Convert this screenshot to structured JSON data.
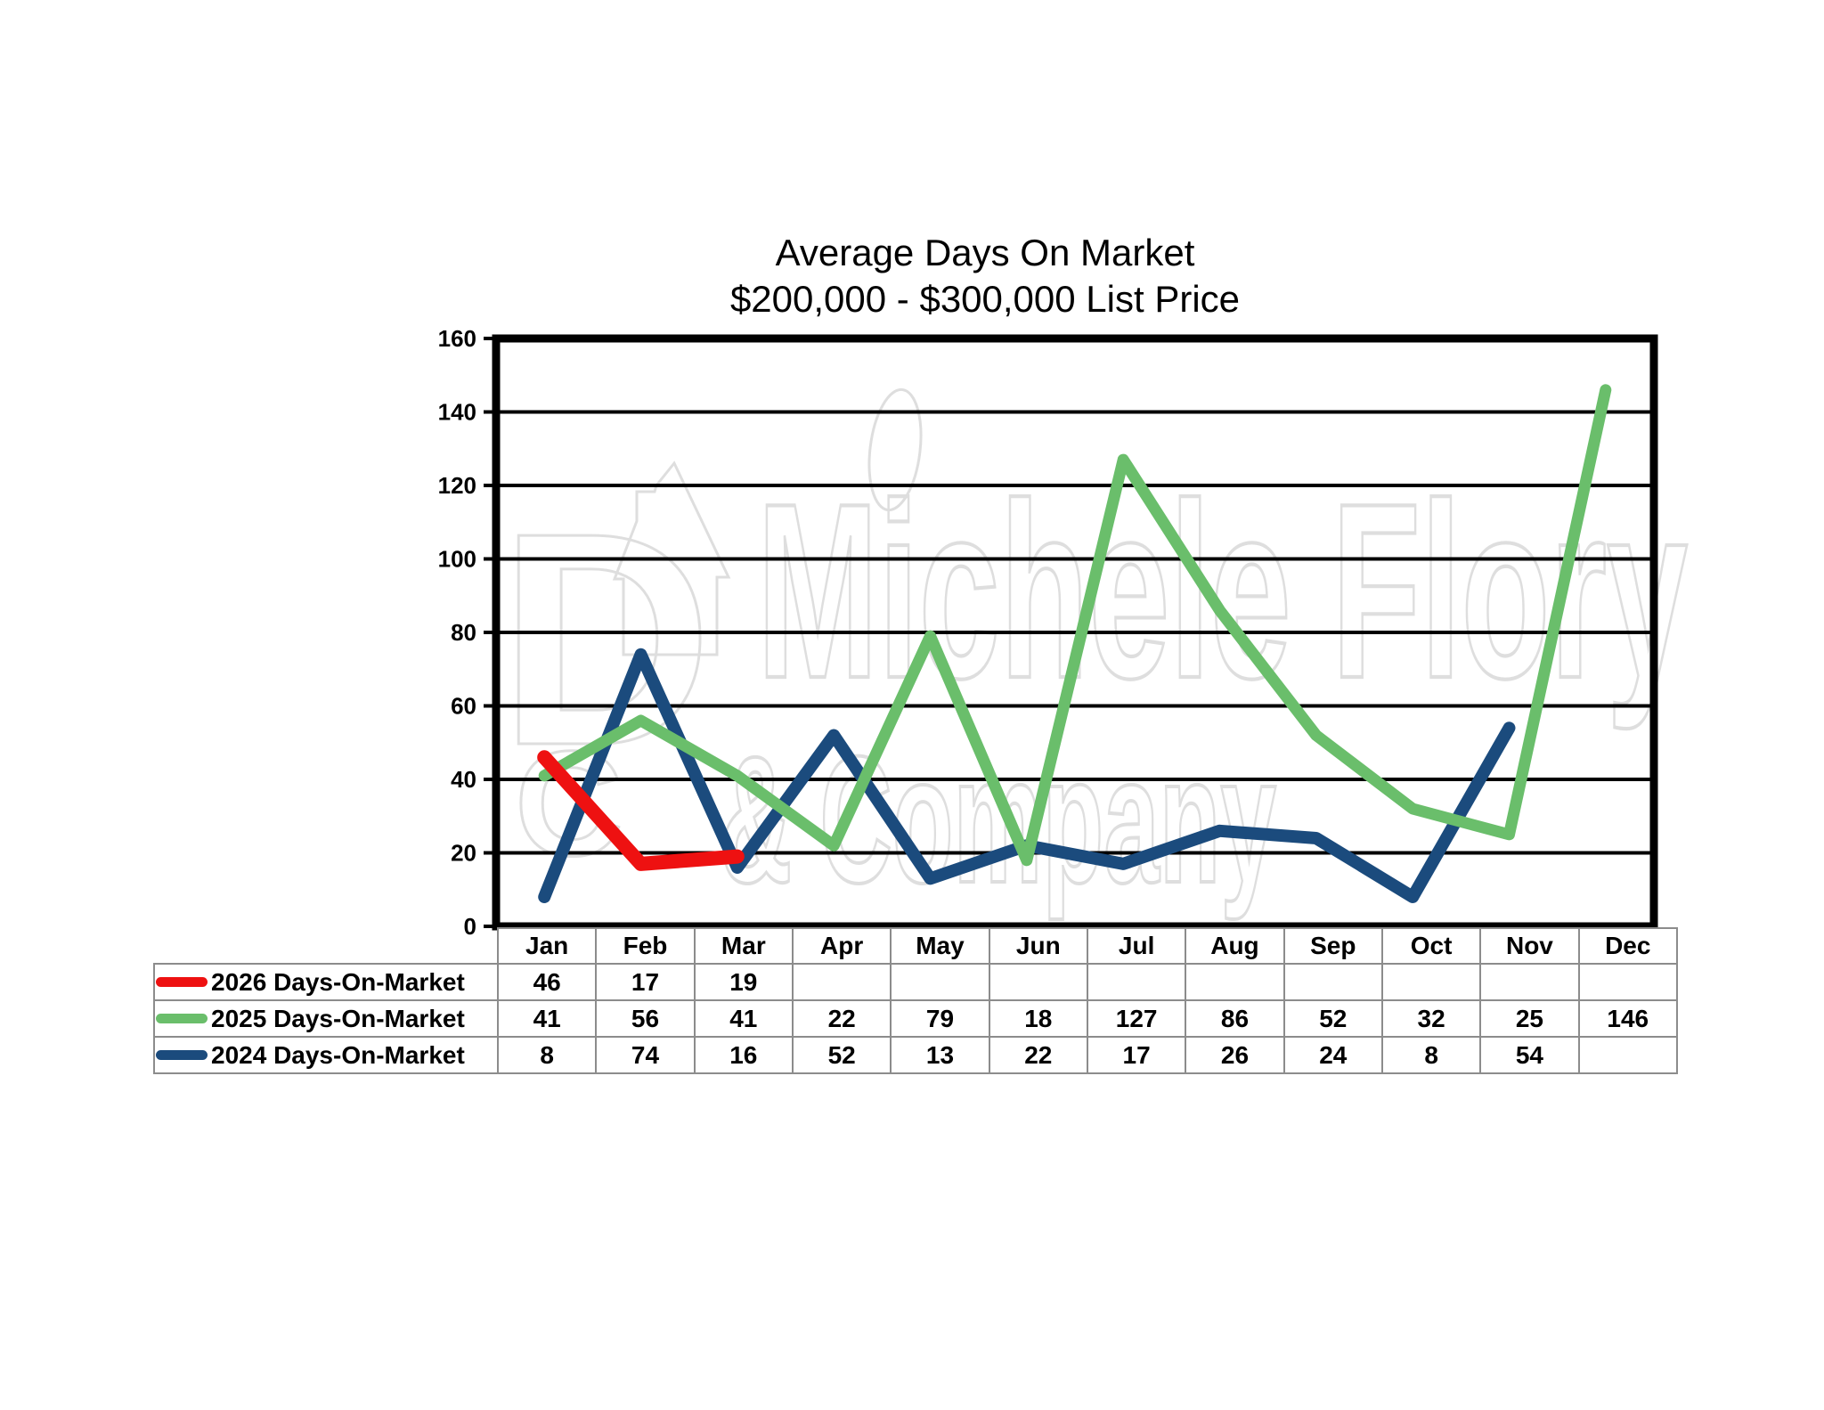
{
  "chart": {
    "title": "Average Days On Market",
    "subtitle": "$200,000 - $300,000 List Price"
  },
  "watermark": {
    "line1": "Michele Flory",
    "line2": "& Company",
    "icons": [
      "letter-d-monogram",
      "house-icon",
      "letter-c-monogram",
      "leaf-icon"
    ],
    "color": "#dedede"
  },
  "chart_data": {
    "type": "line",
    "title": "Average Days On Market",
    "subtitle": "$200,000 - $300,000 List Price",
    "categories": [
      "Jan",
      "Feb",
      "Mar",
      "Apr",
      "May",
      "Jun",
      "Jul",
      "Aug",
      "Sep",
      "Oct",
      "Nov",
      "Dec"
    ],
    "ylim": [
      0,
      160
    ],
    "y_ticks": [
      0,
      20,
      40,
      60,
      80,
      100,
      120,
      140,
      160
    ],
    "grid": "horizontal",
    "grid_color": "#000000",
    "frame_color": "#000000",
    "legend_position": "table-left",
    "series": [
      {
        "name": "2026 Days-On-Market",
        "color": "#ee1111",
        "stroke_width": 16,
        "values": [
          46,
          17,
          19,
          null,
          null,
          null,
          null,
          null,
          null,
          null,
          null,
          null
        ]
      },
      {
        "name": "2025 Days-On-Market",
        "color": "#6abe6b",
        "stroke_width": 13,
        "values": [
          41,
          56,
          41,
          22,
          79,
          18,
          127,
          86,
          52,
          32,
          25,
          146
        ]
      },
      {
        "name": "2024 Days-On-Market",
        "color": "#1b4b7d",
        "stroke_width": 14,
        "values": [
          8,
          74,
          16,
          52,
          13,
          22,
          17,
          26,
          24,
          8,
          54,
          null
        ]
      }
    ]
  }
}
